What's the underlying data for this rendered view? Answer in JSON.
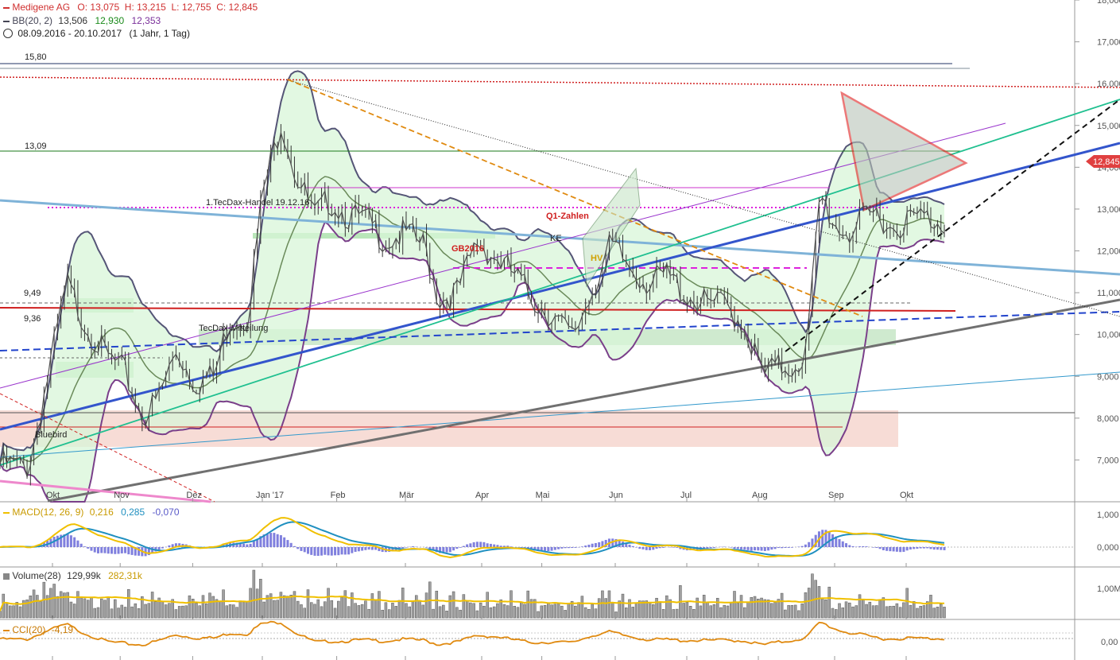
{
  "header": {
    "instrument": "Medigene AG",
    "ohlc": "O: 13,075  H: 13,215  L: 12,755  C: 12,845",
    "bb_label": "BB(20, 2)",
    "bb_upper": "13,506",
    "bb_middle": "12,930",
    "bb_lower": "12,353",
    "range": "08.09.2016 - 20.10.2017",
    "range_detail": "(1 Jahr, 1 Tag)"
  },
  "colors": {
    "instrument": "#d03030",
    "bb_upper": "#333333",
    "bb_middle": "#1a8a1a",
    "bb_lower": "#7a2f9a",
    "macd_line": "#f0c000",
    "signal_line": "#2090c0",
    "histogram": "#6a6ad8",
    "volume_avg": "#f0c000",
    "cci": "#e08a10"
  },
  "chart_data": {
    "type": "line",
    "title": "Medigene AG",
    "y_axis": {
      "position": "right",
      "ticks": [
        "18,000",
        "17,000",
        "16,000",
        "15,000",
        "14,000",
        "13,000",
        "12,000",
        "11,000",
        "10,000",
        "9,000",
        "8,000",
        "7,000"
      ],
      "ylim": [
        6.0,
        18.0
      ]
    },
    "x_axis": {
      "ticks": [
        "Okt",
        "Nov",
        "Dez",
        "Jan '17",
        "Feb",
        "Mär",
        "Apr",
        "Mai",
        "Jun",
        "Jul",
        "Aug",
        "Sep",
        "Okt"
      ]
    },
    "last_price": "12,845",
    "close": [
      {
        "t": 0.0,
        "v": 7.1
      },
      {
        "t": 0.03,
        "v": 7.0
      },
      {
        "t": 0.055,
        "v": 9.7
      },
      {
        "t": 0.07,
        "v": 11.4
      },
      {
        "t": 0.09,
        "v": 10.4
      },
      {
        "t": 0.11,
        "v": 9.7
      },
      {
        "t": 0.13,
        "v": 9.3
      },
      {
        "t": 0.15,
        "v": 8.2
      },
      {
        "t": 0.165,
        "v": 8.6
      },
      {
        "t": 0.185,
        "v": 9.8
      },
      {
        "t": 0.205,
        "v": 9.0
      },
      {
        "t": 0.225,
        "v": 9.2
      },
      {
        "t": 0.24,
        "v": 10.5
      },
      {
        "t": 0.26,
        "v": 10.6
      },
      {
        "t": 0.275,
        "v": 13.5
      },
      {
        "t": 0.295,
        "v": 15.3
      },
      {
        "t": 0.31,
        "v": 14.0
      },
      {
        "t": 0.33,
        "v": 13.0
      },
      {
        "t": 0.345,
        "v": 13.4
      },
      {
        "t": 0.365,
        "v": 13.0
      },
      {
        "t": 0.385,
        "v": 12.9
      },
      {
        "t": 0.405,
        "v": 12.4
      },
      {
        "t": 0.425,
        "v": 12.6
      },
      {
        "t": 0.445,
        "v": 12.3
      },
      {
        "t": 0.46,
        "v": 11.0
      },
      {
        "t": 0.48,
        "v": 11.2
      },
      {
        "t": 0.5,
        "v": 12.4
      },
      {
        "t": 0.52,
        "v": 12.0
      },
      {
        "t": 0.54,
        "v": 11.6
      },
      {
        "t": 0.56,
        "v": 11.0
      },
      {
        "t": 0.58,
        "v": 10.6
      },
      {
        "t": 0.6,
        "v": 10.1
      },
      {
        "t": 0.62,
        "v": 11.2
      },
      {
        "t": 0.64,
        "v": 12.3
      },
      {
        "t": 0.66,
        "v": 11.8
      },
      {
        "t": 0.68,
        "v": 11.4
      },
      {
        "t": 0.7,
        "v": 11.6
      },
      {
        "t": 0.72,
        "v": 11.1
      },
      {
        "t": 0.74,
        "v": 10.9
      },
      {
        "t": 0.76,
        "v": 10.9
      },
      {
        "t": 0.78,
        "v": 10.4
      },
      {
        "t": 0.8,
        "v": 9.2
      },
      {
        "t": 0.815,
        "v": 9.4
      },
      {
        "t": 0.83,
        "v": 9.4
      },
      {
        "t": 0.845,
        "v": 9.7
      },
      {
        "t": 0.86,
        "v": 13.5
      },
      {
        "t": 0.875,
        "v": 12.8
      },
      {
        "t": 0.89,
        "v": 12.6
      },
      {
        "t": 0.905,
        "v": 12.9
      },
      {
        "t": 0.92,
        "v": 13.1
      },
      {
        "t": 0.935,
        "v": 12.7
      },
      {
        "t": 0.95,
        "v": 12.9
      },
      {
        "t": 0.965,
        "v": 13.0
      },
      {
        "t": 0.98,
        "v": 12.9
      },
      {
        "t": 0.99,
        "v": 12.85
      }
    ],
    "horizontal_levels": [
      "15,80",
      "13,09",
      "9,49",
      "9,36"
    ],
    "annotations": [
      "1.TecDax-Handel 19.12.16",
      "TecDax-Mitteilung",
      "Bluebird",
      "GB2016",
      "Q1-Zahlen",
      "KE",
      "HV"
    ],
    "panels": [
      {
        "name": "MACD(12, 26, 9)",
        "values": [
          "0,216",
          "0,285",
          "-0,070"
        ],
        "ticks": [
          "1,000",
          "0,000"
        ]
      },
      {
        "name": "Volume(28)",
        "values": [
          "129,99k",
          "282,31k"
        ],
        "ticks": [
          "1,00M"
        ]
      },
      {
        "name": "CCI(20)",
        "values": [
          "-4,19"
        ],
        "ticks": [
          "0,00"
        ]
      }
    ]
  }
}
